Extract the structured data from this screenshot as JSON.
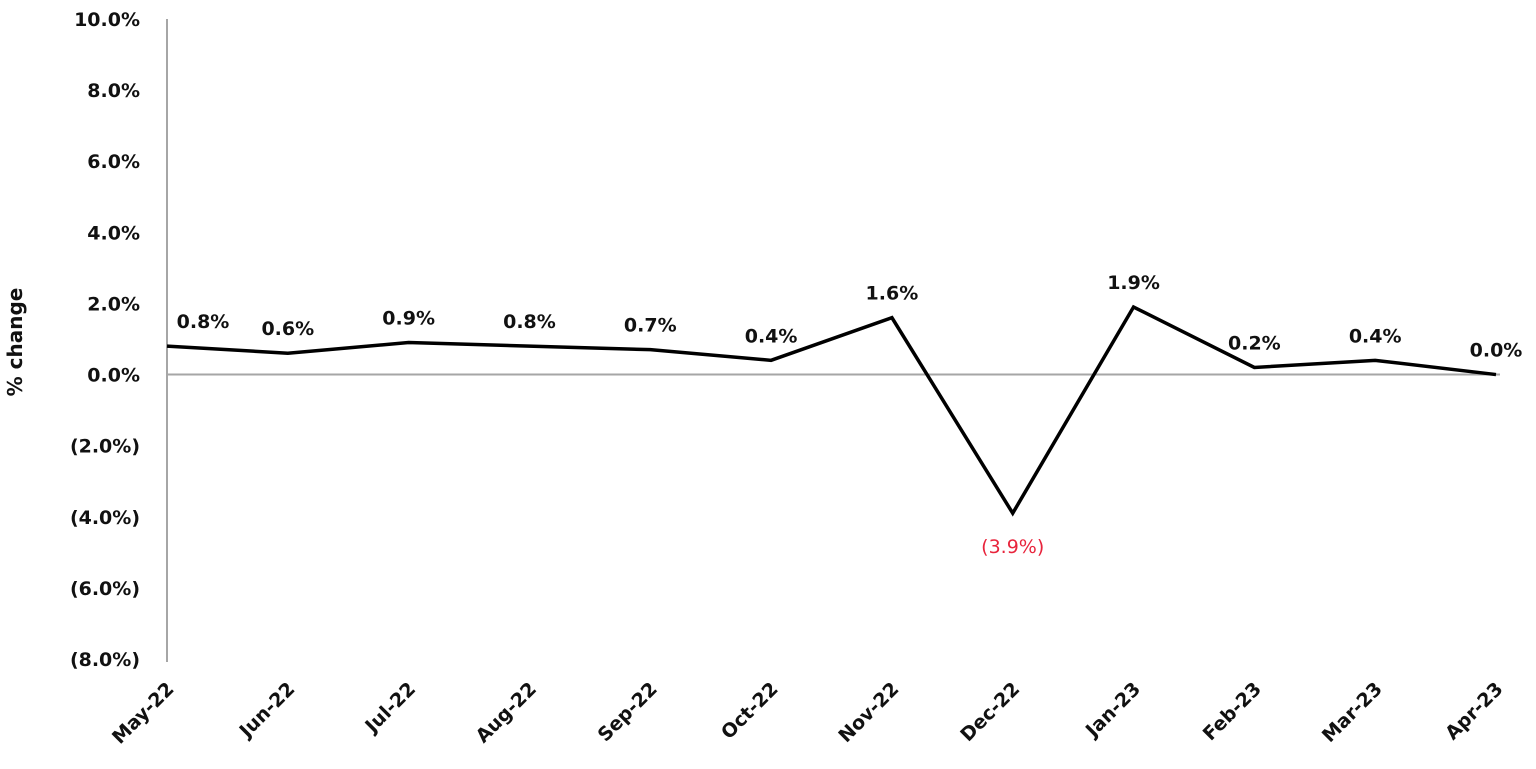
{
  "chart_data": {
    "type": "line",
    "title": "",
    "xlabel": "",
    "ylabel": "% change",
    "ylim": [
      -8.0,
      10.0
    ],
    "yticks": [
      10.0,
      8.0,
      6.0,
      4.0,
      2.0,
      0.0,
      -2.0,
      -4.0,
      -6.0,
      -8.0
    ],
    "ytick_labels": [
      "10.0%",
      "8.0%",
      "6.0%",
      "4.0%",
      "2.0%",
      "0.0%",
      "(2.0%)",
      "(4.0%)",
      "(6.0%)",
      "(8.0%)"
    ],
    "grid": false,
    "legend": null,
    "categories": [
      "May-22",
      "Jun-22",
      "Jul-22",
      "Aug-22",
      "Sep-22",
      "Oct-22",
      "Nov-22",
      "Dec-22",
      "Jan-23",
      "Feb-23",
      "Mar-23",
      "Apr-23"
    ],
    "series": [
      {
        "name": "% change",
        "color": "#000000",
        "values": [
          0.8,
          0.6,
          0.9,
          0.8,
          0.7,
          0.4,
          1.6,
          -3.9,
          1.9,
          0.2,
          0.4,
          0.0
        ],
        "data_labels": [
          "0.8%",
          "0.6%",
          "0.9%",
          "0.8%",
          "0.7%",
          "0.4%",
          "1.6%",
          "(3.9%)",
          "1.9%",
          "0.2%",
          "0.4%",
          "0.0%"
        ]
      }
    ],
    "annotations": [
      {
        "category": "Dec-22",
        "text": "(3.9%)",
        "color": "#e8243c",
        "position": "below"
      }
    ]
  },
  "colors": {
    "line": "#000000",
    "axis": "#a6a6a6",
    "negative_label": "#e8243c",
    "text": "#111111"
  }
}
